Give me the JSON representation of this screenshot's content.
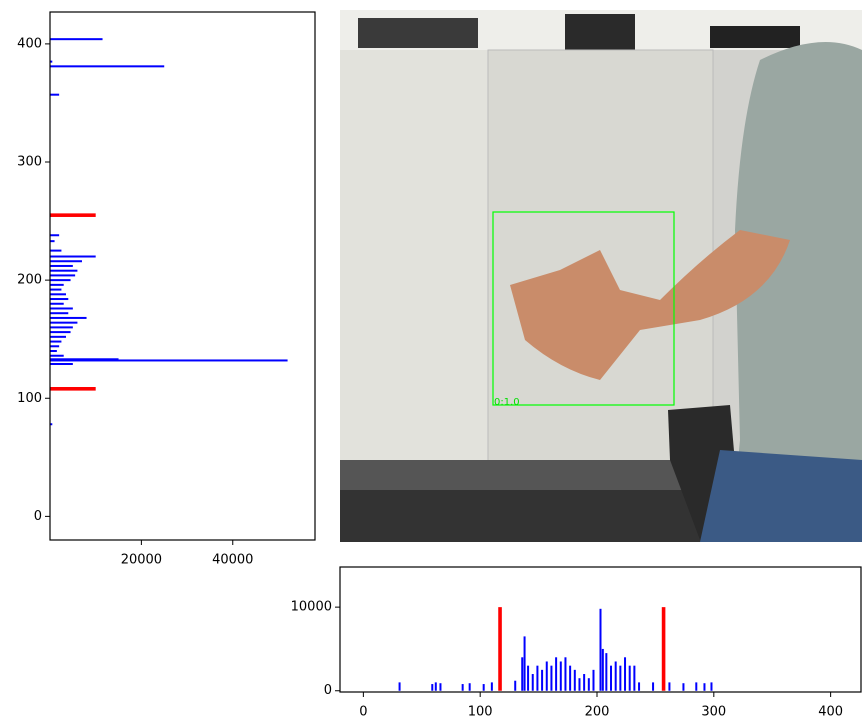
{
  "chart_data": [
    {
      "type": "barh",
      "orientation": "horizontal",
      "xlim": [
        0,
        58000
      ],
      "xticks": [
        20000,
        40000
      ],
      "ylim": [
        -20,
        427
      ],
      "yticks": [
        0,
        100,
        200,
        300,
        400
      ],
      "series": [
        {
          "color": "#0000ff",
          "y": [
            404,
            385,
            381,
            357,
            238,
            233,
            225,
            220,
            216,
            212,
            208,
            204,
            200,
            196,
            192,
            188,
            184,
            180,
            176,
            172,
            168,
            164,
            160,
            156,
            152,
            148,
            144,
            140,
            136,
            133,
            132,
            129,
            78
          ],
          "values": [
            11500,
            500,
            25000,
            2000,
            2000,
            1000,
            2500,
            10000,
            7000,
            5000,
            6000,
            5500,
            4500,
            3000,
            2500,
            3500,
            4000,
            3000,
            5000,
            4000,
            8000,
            6000,
            5000,
            4500,
            3500,
            2500,
            2000,
            1500,
            3000,
            15000,
            52000,
            5000,
            500
          ]
        },
        {
          "color": "#ff0000",
          "y": [
            255,
            108
          ],
          "values": [
            10000,
            10000
          ]
        }
      ]
    },
    {
      "type": "bar",
      "xlim": [
        -20,
        426
      ],
      "xticks": [
        0,
        100,
        200,
        300,
        400
      ],
      "ylim": [
        -150,
        14800
      ],
      "yticks": [
        0,
        10000
      ],
      "series": [
        {
          "color": "#0000ff",
          "x": [
            31,
            59,
            62,
            66,
            85,
            91,
            103,
            110,
            130,
            136,
            138,
            141,
            145,
            149,
            153,
            157,
            161,
            165,
            169,
            173,
            177,
            181,
            185,
            189,
            193,
            197,
            203,
            205,
            208,
            212,
            216,
            220,
            224,
            228,
            232,
            236,
            248,
            262,
            274,
            285,
            292,
            298
          ],
          "values": [
            1000,
            800,
            1000,
            900,
            800,
            900,
            800,
            1000,
            1200,
            4000,
            6500,
            3000,
            2000,
            3000,
            2500,
            3500,
            3000,
            4000,
            3500,
            4000,
            3000,
            2500,
            1500,
            2000,
            1500,
            2500,
            9800,
            5000,
            4500,
            3000,
            3500,
            3000,
            4000,
            3000,
            3000,
            1000,
            1000,
            1000,
            900,
            1000,
            900,
            1000
          ]
        },
        {
          "color": "#ff0000",
          "x": [
            117,
            257
          ],
          "values": [
            10000,
            10000
          ]
        }
      ]
    }
  ],
  "image": {
    "box_label": "0:1.0"
  }
}
